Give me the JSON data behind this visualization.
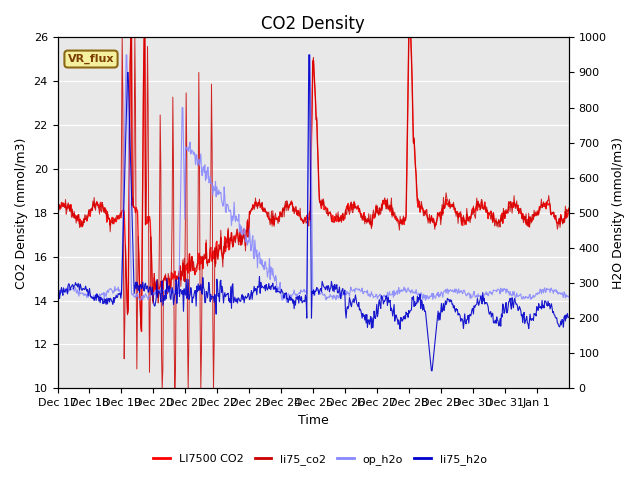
{
  "title": "CO2 Density",
  "ylabel_left": "CO2 Density (mmol/m3)",
  "ylabel_right": "H2O Density (mmol/m3)",
  "xlabel": "Time",
  "ylim_left": [
    10,
    26
  ],
  "ylim_right": [
    0,
    1000
  ],
  "background_color": "#e8e8e8",
  "vr_flux_label": "VR_flux",
  "xtick_labels": [
    "Dec 17",
    "Dec 18",
    "Dec 19",
    "Dec 20",
    "Dec 21",
    "Dec 22",
    "Dec 23",
    "Dec 24",
    "Dec 25",
    "Dec 26",
    "Dec 27",
    "Dec 28",
    "Dec 29",
    "Dec 30",
    "Dec 31",
    "Jan 1"
  ],
  "yticks_left": [
    10,
    12,
    14,
    16,
    18,
    20,
    22,
    24,
    26
  ],
  "yticks_right": [
    0,
    100,
    200,
    300,
    400,
    500,
    600,
    700,
    800,
    900,
    1000
  ],
  "title_fontsize": 12,
  "axis_fontsize": 9,
  "tick_fontsize": 8,
  "color_li7500": "#ff0000",
  "color_li75_co2": "#cc0000",
  "color_op_h2o": "#8888ff",
  "color_li75_h2o": "#0000cc"
}
